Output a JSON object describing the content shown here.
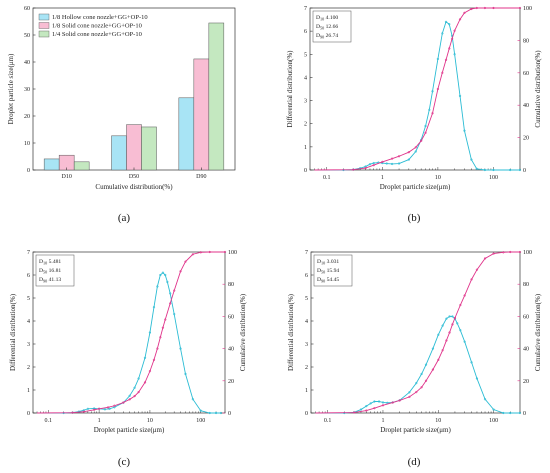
{
  "chart_data": [
    {
      "panel": "(a)",
      "type": "bar",
      "xlabel": "Cumulative distribution(%)",
      "ylabel": "Droplet particle size(μm)",
      "ylim": [
        0,
        60
      ],
      "yticks": [
        "0",
        "10",
        "20",
        "30",
        "40",
        "50",
        "60"
      ],
      "categories": [
        "D10",
        "D50",
        "D90"
      ],
      "legend_position": "top-left",
      "series": [
        {
          "name": "1/8 Hollow cone nozzle+GG+OP-10",
          "color": "#a8e4f5",
          "values": [
            4.1,
            12.66,
            26.74
          ]
        },
        {
          "name": "1/8 Solid cone nozzle+GG+OP-10",
          "color": "#f8bdd3",
          "values": [
            5.48,
            16.81,
            41.13
          ]
        },
        {
          "name": "1/4 Solid cone nozzle+GG+OP-10",
          "color": "#c4e8c0",
          "values": [
            3.03,
            15.94,
            54.45
          ]
        }
      ]
    },
    {
      "panel": "(b)",
      "type": "line",
      "xlabel": "Droplet particle size(μm)",
      "ylabel": "Differential distribution(%)",
      "ylabel_right": "Cumulative distribution(%)",
      "xscale": "log",
      "xticks": [
        "0.1",
        "1",
        "10",
        "100"
      ],
      "ylim": [
        0,
        7
      ],
      "yticks": [
        "0",
        "1",
        "2",
        "3",
        "4",
        "5",
        "6",
        "7"
      ],
      "ylim_right": [
        0,
        100
      ],
      "yticks_right": [
        "0",
        "20",
        "40",
        "60",
        "80",
        "100"
      ],
      "stats": {
        "labels": [
          "D10",
          "D50",
          "D90"
        ],
        "values": [
          "4.100",
          "12.66",
          "26.74"
        ]
      },
      "series": [
        {
          "kind": "differential",
          "color": "#2bbcd4",
          "x": [
            0.06,
            0.2,
            0.3,
            0.4,
            0.5,
            0.6,
            0.7,
            0.85,
            1.0,
            1.2,
            1.5,
            2,
            3,
            4,
            5,
            6,
            7,
            8,
            10,
            12,
            14,
            16,
            18,
            20,
            25,
            30,
            40,
            50,
            70,
            100,
            200,
            300
          ],
          "y": [
            0,
            0,
            0.02,
            0.08,
            0.15,
            0.25,
            0.3,
            0.32,
            0.3,
            0.28,
            0.26,
            0.28,
            0.45,
            0.8,
            1.3,
            1.9,
            2.6,
            3.4,
            4.8,
            5.9,
            6.4,
            6.3,
            5.8,
            5.0,
            3.2,
            1.7,
            0.45,
            0.05,
            0,
            0,
            0,
            0
          ]
        },
        {
          "kind": "cumulative",
          "color": "#e0338a",
          "x": [
            0.06,
            0.3,
            0.5,
            0.7,
            1.0,
            1.5,
            2,
            3,
            4,
            5,
            6,
            8,
            10,
            12,
            14,
            16,
            18,
            20,
            25,
            30,
            40,
            50,
            70,
            100,
            300
          ],
          "y": [
            0,
            0.2,
            1.2,
            3.0,
            5.0,
            7.0,
            8.5,
            11,
            14,
            18,
            23,
            35,
            50,
            60,
            68,
            75,
            81,
            86,
            93,
            97,
            99.4,
            100,
            100,
            100,
            100
          ]
        }
      ]
    },
    {
      "panel": "(c)",
      "type": "line",
      "xlabel": "Droplet particle size(μm)",
      "ylabel": "Differential distribution(%)",
      "ylabel_right": "Cumulative distribution(%)",
      "xscale": "log",
      "xticks": [
        "0.1",
        "1",
        "10",
        "100"
      ],
      "ylim": [
        0,
        7
      ],
      "yticks": [
        "0",
        "1",
        "2",
        "3",
        "4",
        "5",
        "6",
        "7"
      ],
      "ylim_right": [
        0,
        100
      ],
      "yticks_right": [
        "0",
        "20",
        "40",
        "60",
        "80",
        "100"
      ],
      "stats": {
        "labels": [
          "D10",
          "D50",
          "D90"
        ],
        "values": [
          "5.481",
          "16.81",
          "41.13"
        ]
      },
      "series": [
        {
          "kind": "differential",
          "color": "#2bbcd4",
          "x": [
            0.06,
            0.2,
            0.3,
            0.4,
            0.5,
            0.6,
            0.8,
            1.0,
            1.3,
            1.6,
            2,
            3,
            4,
            5,
            6,
            8,
            10,
            12,
            14,
            16,
            18,
            20,
            22,
            25,
            30,
            40,
            50,
            70,
            100,
            150,
            200,
            250
          ],
          "y": [
            0,
            0,
            0.02,
            0.06,
            0.12,
            0.18,
            0.2,
            0.18,
            0.16,
            0.18,
            0.25,
            0.45,
            0.75,
            1.1,
            1.5,
            2.4,
            3.5,
            4.6,
            5.5,
            6.0,
            6.1,
            6.0,
            5.7,
            5.2,
            4.3,
            2.8,
            1.7,
            0.6,
            0.1,
            0,
            0,
            0
          ]
        },
        {
          "kind": "cumulative",
          "color": "#e0338a",
          "x": [
            0.06,
            0.3,
            0.5,
            0.8,
            1.0,
            1.5,
            2,
            3,
            4,
            5,
            6,
            8,
            10,
            12,
            14,
            16,
            18,
            20,
            25,
            30,
            40,
            50,
            70,
            100,
            150,
            300
          ],
          "y": [
            0,
            0.2,
            0.8,
            2,
            2.6,
            3.5,
            4.5,
            6.5,
            8.5,
            10.5,
            13,
            19,
            26,
            33,
            40,
            47,
            53,
            58,
            68,
            76,
            88,
            94,
            98.6,
            99.8,
            100,
            100
          ]
        }
      ]
    },
    {
      "panel": "(d)",
      "type": "line",
      "xlabel": "Droplet particle size(μm)",
      "ylabel": "Differential distribution(%)",
      "ylabel_right": "Cumulative distribution(%)",
      "xscale": "log",
      "xticks": [
        "0.1",
        "1",
        "10",
        "100"
      ],
      "ylim": [
        0,
        7
      ],
      "yticks": [
        "0",
        "1",
        "2",
        "3",
        "4",
        "5",
        "6",
        "7"
      ],
      "ylim_right": [
        0,
        100
      ],
      "yticks_right": [
        "0",
        "20",
        "40",
        "60",
        "80",
        "100"
      ],
      "stats": {
        "labels": [
          "D10",
          "D50",
          "D90"
        ],
        "values": [
          "3.031",
          "15.94",
          "54.45"
        ]
      },
      "series": [
        {
          "kind": "differential",
          "color": "#2bbcd4",
          "x": [
            0.06,
            0.2,
            0.3,
            0.4,
            0.5,
            0.6,
            0.7,
            0.85,
            1.0,
            1.2,
            1.5,
            2,
            3,
            4,
            5,
            6,
            8,
            10,
            12,
            14,
            16,
            18,
            20,
            22,
            25,
            30,
            40,
            50,
            70,
            100,
            150,
            200,
            300
          ],
          "y": [
            0,
            0,
            0.03,
            0.15,
            0.3,
            0.42,
            0.5,
            0.5,
            0.46,
            0.44,
            0.46,
            0.55,
            0.9,
            1.3,
            1.7,
            2.1,
            2.8,
            3.4,
            3.8,
            4.1,
            4.2,
            4.2,
            4.1,
            3.9,
            3.6,
            3.1,
            2.2,
            1.5,
            0.6,
            0.15,
            0,
            0,
            0
          ]
        },
        {
          "kind": "cumulative",
          "color": "#e0338a",
          "x": [
            0.06,
            0.3,
            0.5,
            0.7,
            1.0,
            1.5,
            2,
            3,
            4,
            5,
            6,
            8,
            10,
            12,
            14,
            16,
            18,
            20,
            25,
            30,
            40,
            50,
            70,
            100,
            150,
            200,
            300
          ],
          "y": [
            0,
            0.3,
            1.5,
            3,
            4.8,
            6.5,
            7.8,
            10,
            13,
            16,
            20,
            27,
            33,
            39,
            45,
            50,
            55,
            59,
            67,
            73,
            83,
            89,
            96,
            99,
            99.8,
            100,
            100
          ]
        }
      ]
    }
  ]
}
